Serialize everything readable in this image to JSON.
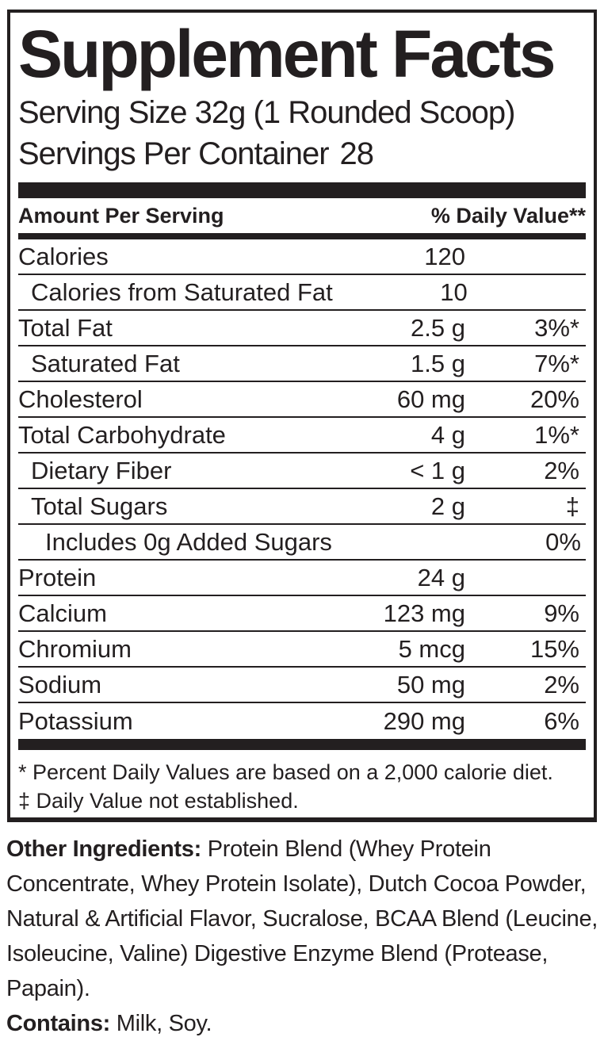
{
  "colors": {
    "text": "#231f20",
    "bar": "#231f20",
    "background": "#ffffff"
  },
  "panel": {
    "title": "Supplement Facts",
    "serving_size": "Serving Size 32g (1 Rounded Scoop)",
    "servings_per_container_label": "Servings Per Container",
    "servings_per_container_value": "28",
    "header": {
      "left": "Amount Per Serving",
      "right": "% Daily Value**"
    },
    "rows": [
      {
        "label": "Calories",
        "amount": "120",
        "dv": "",
        "indent": 0
      },
      {
        "label": "Calories from Saturated Fat",
        "amount": "10",
        "dv": "",
        "indent": 1
      },
      {
        "label": "Total Fat",
        "amount": "2.5 g",
        "dv": "3%*",
        "indent": 0
      },
      {
        "label": "Saturated Fat",
        "amount": "1.5 g",
        "dv": "7%*",
        "indent": 1
      },
      {
        "label": "Cholesterol",
        "amount": "60 mg",
        "dv": "20%",
        "indent": 0
      },
      {
        "label": "Total Carbohydrate",
        "amount": "4 g",
        "dv": "1%*",
        "indent": 0
      },
      {
        "label": "Dietary Fiber",
        "amount": "< 1 g",
        "dv": "2%",
        "indent": 1
      },
      {
        "label": "Total Sugars",
        "amount": "2 g",
        "dv": "‡",
        "indent": 1
      },
      {
        "label": "Includes 0g Added Sugars",
        "amount": "",
        "dv": "0%",
        "indent": 2
      },
      {
        "label": "Protein",
        "amount": "24 g",
        "dv": "",
        "indent": 0
      },
      {
        "label": "Calcium",
        "amount": "123 mg",
        "dv": "9%",
        "indent": 0
      },
      {
        "label": "Chromium",
        "amount": "5 mcg",
        "dv": "15%",
        "indent": 0
      },
      {
        "label": "Sodium",
        "amount": "50 mg",
        "dv": "2%",
        "indent": 0
      },
      {
        "label": "Potassium",
        "amount": "290 mg",
        "dv": "6%",
        "indent": 0
      }
    ],
    "footnotes": [
      "* Percent Daily Values are based on a 2,000 calorie diet.",
      "‡ Daily Value not established."
    ]
  },
  "ingredients": {
    "other_lead": "Other Ingredients:",
    "other_text": " Protein Blend (Whey Protein Concentrate, Whey Protein Isolate), Dutch Cocoa Powder, Natural & Artificial Flavor, Sucralose, BCAA Blend (Leucine, Isoleucine, Valine) Digestive Enzyme Blend (Protease, Papain).",
    "contains_lead": "Contains:",
    "contains_text": " Milk, Soy."
  }
}
